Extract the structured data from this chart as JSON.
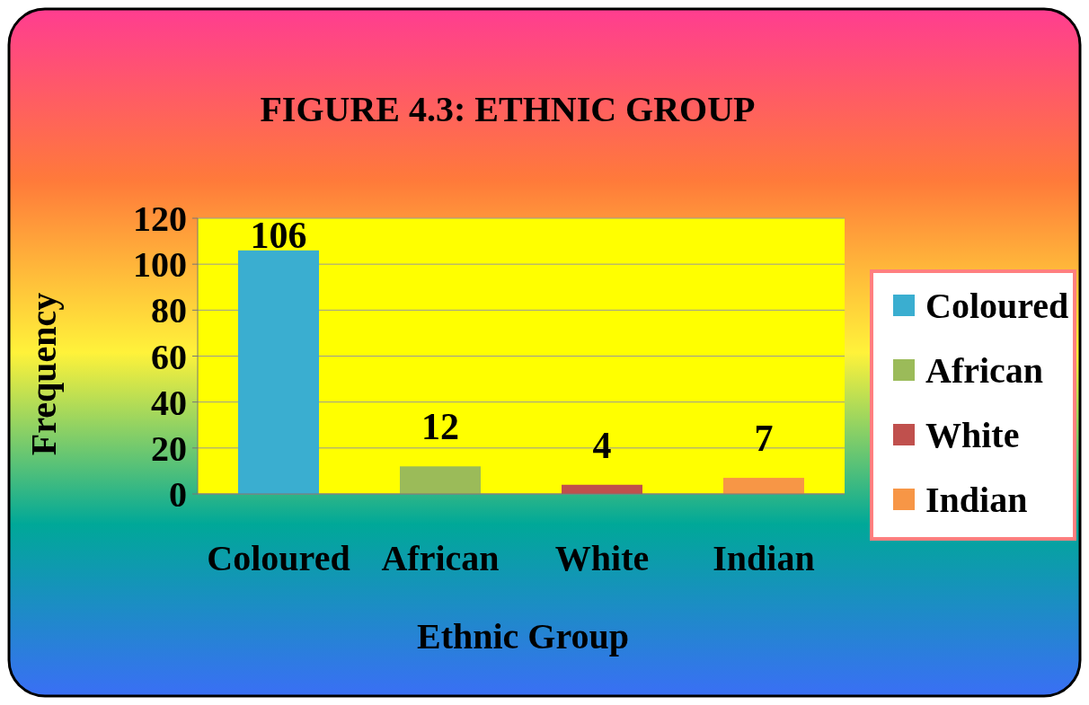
{
  "chart_data": {
    "type": "bar",
    "title": "FIGURE 4.3:  ETHNIC GROUP",
    "xlabel": "Ethnic Group",
    "ylabel": "Frequency",
    "categories": [
      "Coloured",
      "African",
      "White",
      "Indian"
    ],
    "stacked": true,
    "series": [
      {
        "name": "Coloured",
        "color": "#3aaed0",
        "values": [
          106,
          null,
          null,
          null
        ]
      },
      {
        "name": "African",
        "color": "#9bbb59",
        "values": [
          null,
          12,
          null,
          null
        ]
      },
      {
        "name": "White",
        "color": "#c0504d",
        "values": [
          null,
          null,
          4,
          null
        ]
      },
      {
        "name": "Indian",
        "color": "#f79646",
        "values": [
          null,
          null,
          null,
          7
        ]
      }
    ],
    "ylim": [
      0,
      120
    ],
    "yticks": [
      0,
      20,
      40,
      60,
      80,
      100,
      120
    ],
    "grid": "y",
    "legend": "right",
    "data_labels": true
  }
}
